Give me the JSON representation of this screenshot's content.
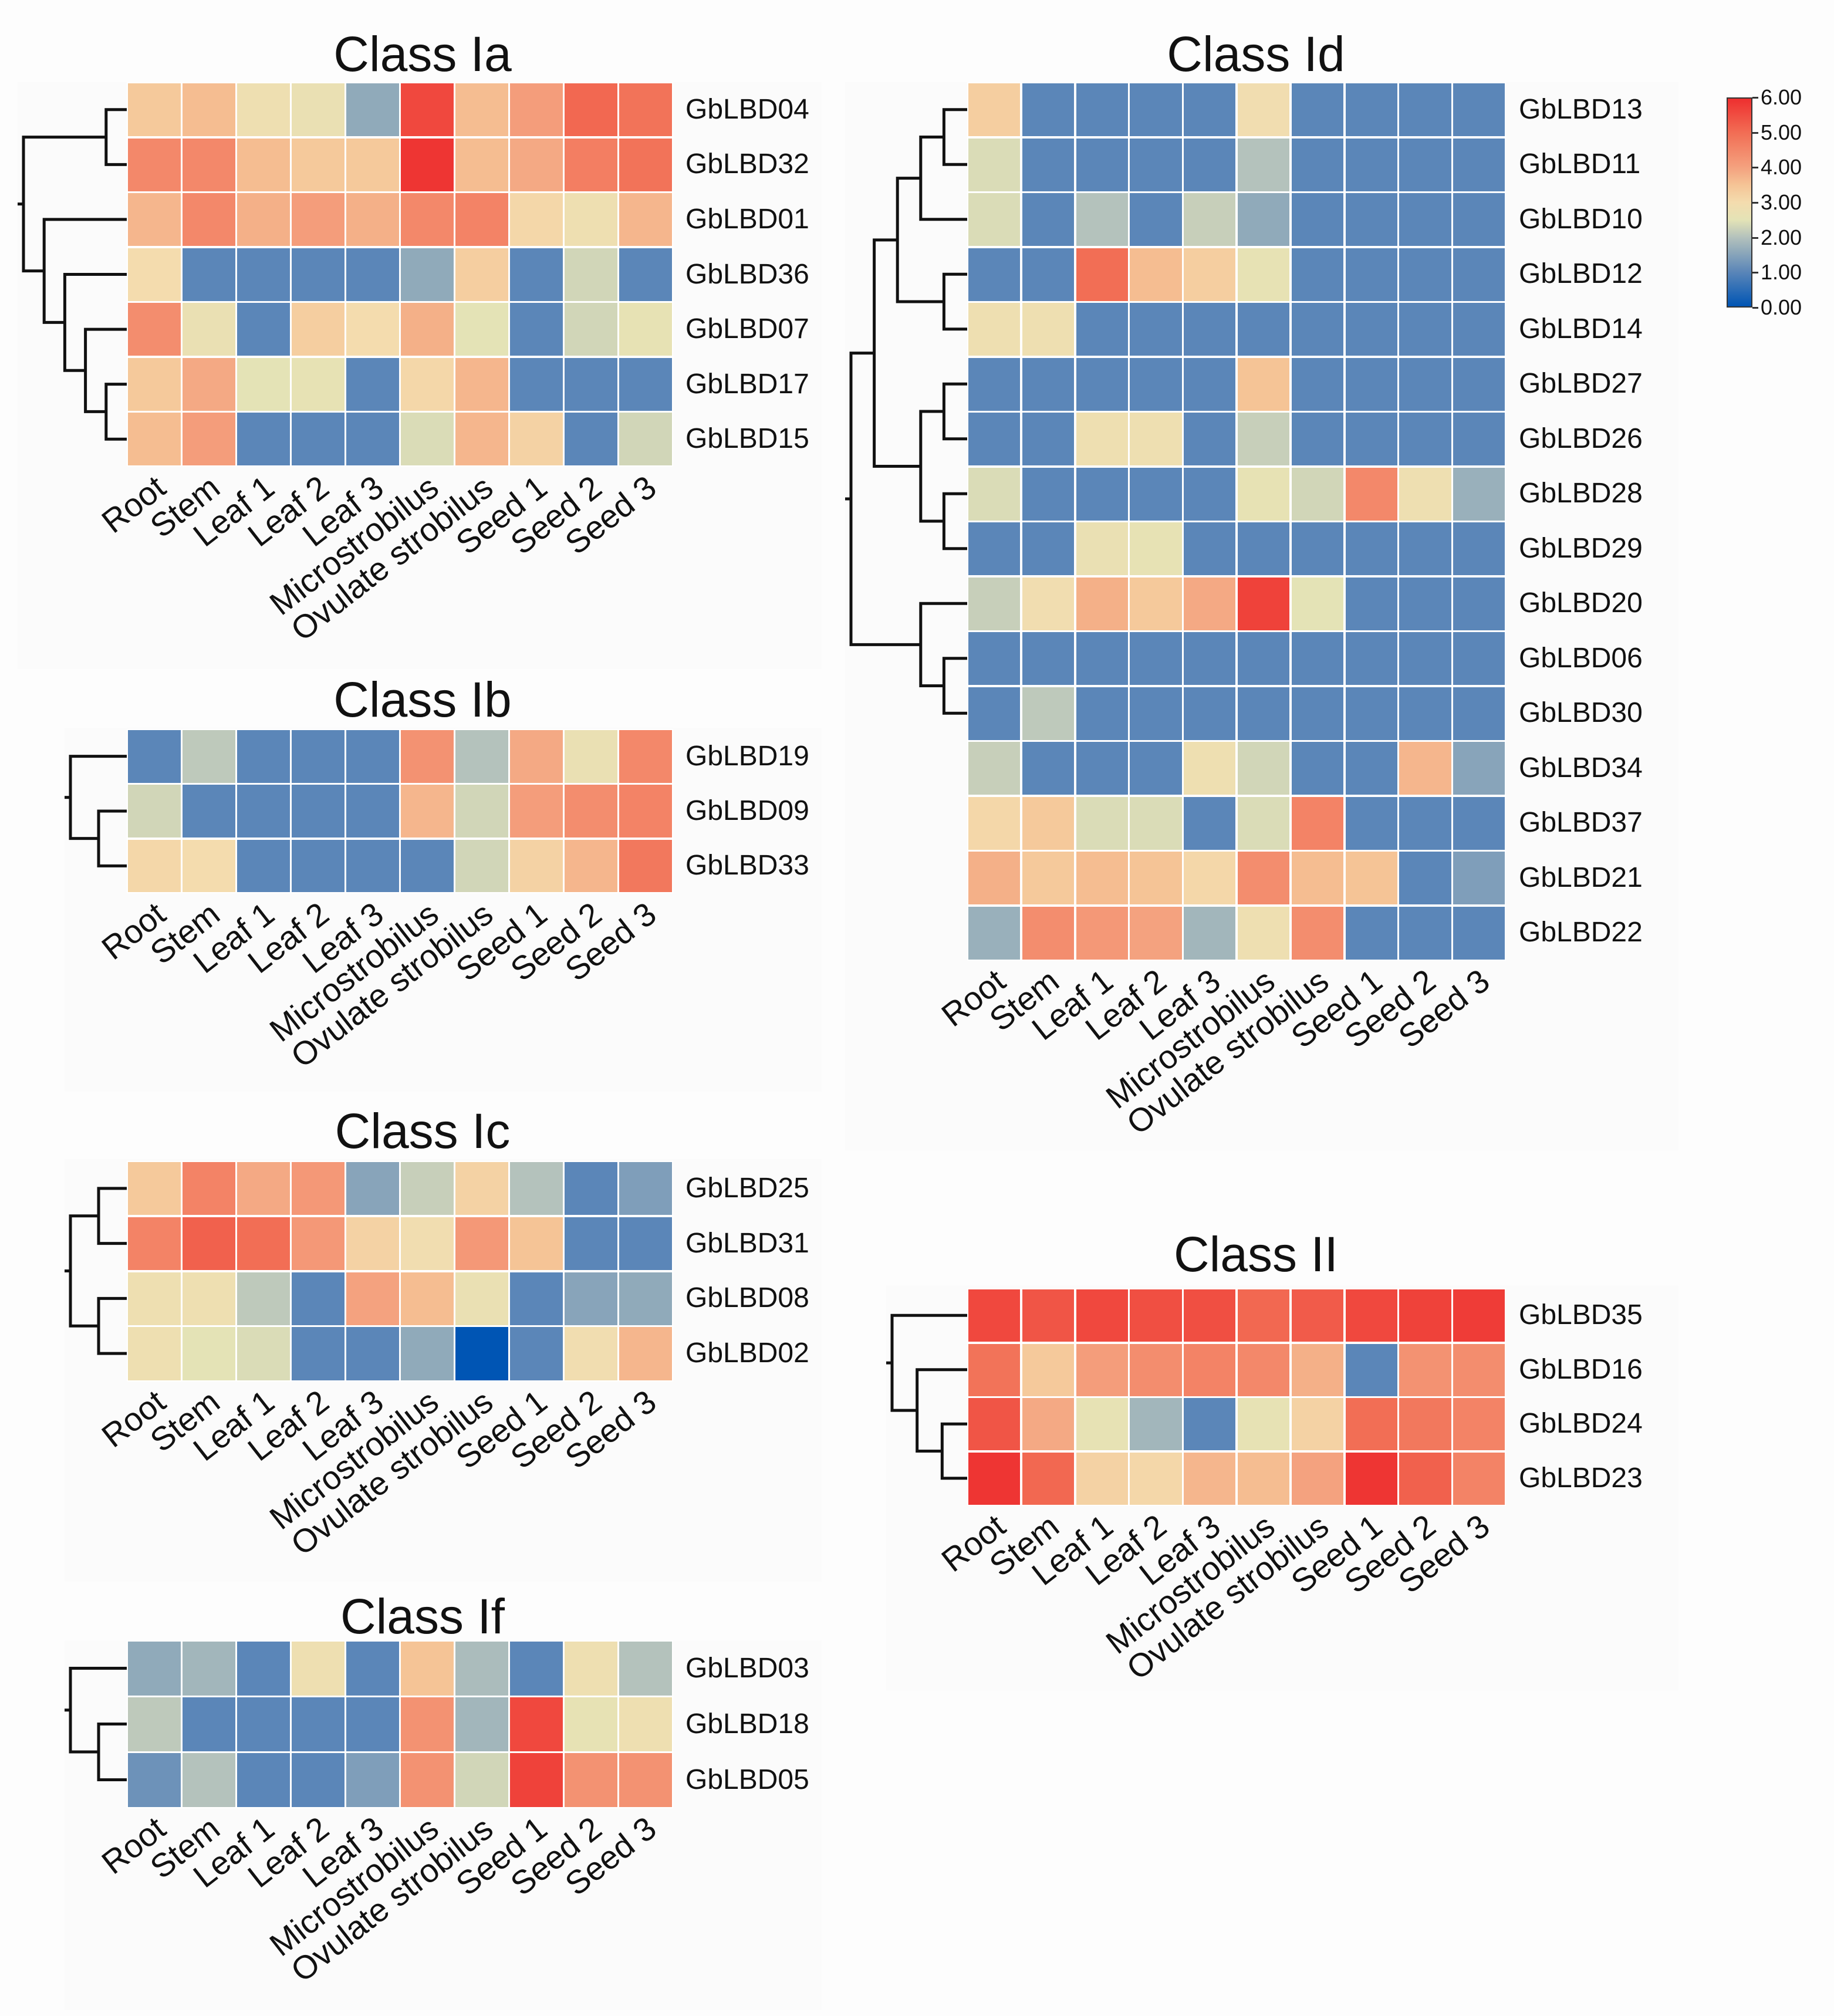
{
  "colorbar": {
    "min": 0,
    "max": 6,
    "ticks": [
      "6.00",
      "5.00",
      "4.00",
      "3.00",
      "2.00",
      "1.00",
      "0.00"
    ],
    "stops": [
      {
        "v": 0.0,
        "c": "#0055b4"
      },
      {
        "v": 1.0,
        "c": "#5b86b8"
      },
      {
        "v": 2.0,
        "c": "#b4c2bc"
      },
      {
        "v": 2.5,
        "c": "#e4e3b6"
      },
      {
        "v": 3.0,
        "c": "#f4dcae"
      },
      {
        "v": 3.5,
        "c": "#f5c496"
      },
      {
        "v": 4.0,
        "c": "#f4a27f"
      },
      {
        "v": 5.0,
        "c": "#f26e55"
      },
      {
        "v": 6.0,
        "c": "#ee2f2f"
      }
    ]
  },
  "columns": [
    "Root",
    "Stem",
    "Leaf 1",
    "Leaf 2",
    "Leaf 3",
    "Microstrobilus",
    "Ovulate strobilus",
    "Seed 1",
    "Seed 2",
    "Seed 3"
  ],
  "chart_data": [
    {
      "type": "heatmap",
      "id": "ia",
      "title": "Class Ia",
      "rows": [
        "GbLBD04",
        "GbLBD32",
        "GbLBD01",
        "GbLBD36",
        "GbLBD07",
        "GbLBD17",
        "GbLBD15"
      ],
      "values": [
        [
          3.4,
          3.6,
          2.8,
          2.7,
          1.6,
          5.6,
          3.6,
          4.1,
          5.1,
          4.9
        ],
        [
          4.5,
          4.5,
          3.6,
          3.4,
          3.4,
          5.9,
          3.6,
          3.9,
          4.7,
          4.9
        ],
        [
          3.7,
          4.5,
          3.8,
          4.1,
          3.8,
          4.5,
          4.6,
          3.1,
          2.8,
          3.7
        ],
        [
          3.0,
          1.0,
          1.0,
          1.0,
          1.0,
          1.6,
          3.3,
          1.0,
          2.3,
          1.0
        ],
        [
          4.4,
          2.7,
          1.0,
          3.3,
          3.0,
          3.8,
          2.5,
          1.0,
          2.3,
          2.6
        ],
        [
          3.4,
          3.9,
          2.5,
          2.6,
          1.0,
          3.1,
          3.7,
          1.0,
          1.0,
          1.0
        ],
        [
          3.6,
          4.1,
          1.0,
          1.0,
          1.0,
          2.4,
          3.7,
          3.2,
          1.0,
          2.3
        ]
      ],
      "tree": [
        [
          [
            0,
            1
          ],
          [
            2,
            [
              3,
              [
                4,
                [
                  5,
                  6
                ]
              ]
            ]
          ]
        ]
      ]
    },
    {
      "type": "heatmap",
      "id": "ib",
      "title": "Class Ib",
      "rows": [
        "GbLBD19",
        "GbLBD09",
        "GbLBD33"
      ],
      "values": [
        [
          1.0,
          2.1,
          1.0,
          1.0,
          1.0,
          4.3,
          2.0,
          3.9,
          2.7,
          4.5
        ],
        [
          2.3,
          1.0,
          1.0,
          1.0,
          1.0,
          3.7,
          2.3,
          4.1,
          4.4,
          4.6
        ],
        [
          3.1,
          3.0,
          1.0,
          1.0,
          1.0,
          1.0,
          2.3,
          3.2,
          3.7,
          4.8
        ]
      ],
      "tree": [
        [
          0,
          [
            1,
            2
          ]
        ]
      ]
    },
    {
      "type": "heatmap",
      "id": "ic",
      "title": "Class Ic",
      "rows": [
        "GbLBD25",
        "GbLBD31",
        "GbLBD08",
        "GbLBD02"
      ],
      "values": [
        [
          3.4,
          4.6,
          3.9,
          4.2,
          1.5,
          2.2,
          3.2,
          2.0,
          1.0,
          1.4
        ],
        [
          4.6,
          5.2,
          5.0,
          4.2,
          3.2,
          2.9,
          4.2,
          3.5,
          1.0,
          1.0
        ],
        [
          2.8,
          2.8,
          2.1,
          1.0,
          4.0,
          3.6,
          2.7,
          1.0,
          1.5,
          1.6
        ],
        [
          2.8,
          2.5,
          2.4,
          1.0,
          1.0,
          1.6,
          0.0,
          1.0,
          2.9,
          3.7
        ]
      ],
      "tree": [
        [
          [
            0,
            1
          ],
          [
            2,
            3
          ]
        ]
      ]
    },
    {
      "type": "heatmap",
      "id": "if",
      "title": "Class If",
      "rows": [
        "GbLBD03",
        "GbLBD18",
        "GbLBD05"
      ],
      "values": [
        [
          1.6,
          1.8,
          1.0,
          2.8,
          1.0,
          3.5,
          1.9,
          1.0,
          2.8,
          2.0
        ],
        [
          2.1,
          1.0,
          1.0,
          1.0,
          1.0,
          4.3,
          1.8,
          5.6,
          2.6,
          2.8
        ],
        [
          1.2,
          2.0,
          1.0,
          1.0,
          1.4,
          4.3,
          2.3,
          5.7,
          4.3,
          4.3
        ]
      ],
      "tree": [
        [
          0,
          [
            1,
            2
          ]
        ]
      ]
    },
    {
      "type": "heatmap",
      "id": "id",
      "title": "Class Id",
      "rows": [
        "GbLBD13",
        "GbLBD11",
        "GbLBD10",
        "GbLBD12",
        "GbLBD14",
        "GbLBD27",
        "GbLBD26",
        "GbLBD28",
        "GbLBD29",
        "GbLBD20",
        "GbLBD06",
        "GbLBD30",
        "GbLBD34",
        "GbLBD37",
        "GbLBD21",
        "GbLBD22"
      ],
      "values": [
        [
          3.3,
          1.0,
          1.0,
          1.0,
          1.0,
          2.9,
          1.0,
          1.0,
          1.0,
          1.0
        ],
        [
          2.4,
          1.0,
          1.0,
          1.0,
          1.0,
          2.0,
          1.0,
          1.0,
          1.0,
          1.0
        ],
        [
          2.4,
          1.0,
          2.0,
          1.0,
          2.2,
          1.6,
          1.0,
          1.0,
          1.0,
          1.0
        ],
        [
          1.0,
          1.0,
          5.0,
          3.6,
          3.3,
          2.6,
          1.0,
          1.0,
          1.0,
          1.0
        ],
        [
          2.8,
          2.8,
          1.0,
          1.0,
          1.0,
          1.0,
          1.0,
          1.0,
          1.0,
          1.0
        ],
        [
          1.0,
          1.0,
          1.0,
          1.0,
          1.0,
          3.5,
          1.0,
          1.0,
          1.0,
          1.0
        ],
        [
          1.0,
          1.0,
          2.8,
          2.8,
          1.0,
          2.2,
          1.0,
          1.0,
          1.0,
          1.0
        ],
        [
          2.4,
          1.0,
          1.0,
          1.0,
          1.0,
          2.6,
          2.3,
          4.5,
          2.8,
          1.7
        ],
        [
          1.0,
          1.0,
          2.7,
          2.6,
          1.0,
          1.0,
          1.0,
          1.0,
          1.0,
          1.0
        ],
        [
          2.2,
          2.9,
          3.8,
          3.4,
          3.9,
          5.7,
          2.5,
          1.0,
          1.0,
          1.0
        ],
        [
          1.0,
          1.0,
          1.0,
          1.0,
          1.0,
          1.0,
          1.0,
          1.0,
          1.0,
          1.0
        ],
        [
          1.0,
          2.1,
          1.0,
          1.0,
          1.0,
          1.0,
          1.0,
          1.0,
          1.0,
          1.0
        ],
        [
          2.2,
          1.0,
          1.0,
          1.0,
          2.8,
          2.3,
          1.0,
          1.0,
          3.7,
          1.5
        ],
        [
          3.1,
          3.4,
          2.4,
          2.4,
          1.0,
          2.4,
          4.6,
          1.0,
          1.0,
          1.0
        ],
        [
          3.8,
          3.4,
          3.6,
          3.5,
          3.1,
          4.4,
          3.6,
          3.5,
          1.0,
          1.4
        ],
        [
          1.7,
          4.4,
          4.2,
          4.0,
          1.8,
          2.8,
          4.4,
          1.0,
          1.0,
          1.0
        ]
      ],
      "tree": [
        [
          [
            [
              [
                [
                  0,
                  1
                ],
                2
              ],
              [
                3,
                4
              ]
            ],
            [
              [
                5,
                6
              ],
              [
                7,
                8
              ]
            ]
          ],
          [
            9,
            [
              10,
              11
            ]
          ]
        ],
        [
          [
            12,
            13
          ],
          [
            14,
            15
          ]
        ]
      ]
    },
    {
      "type": "heatmap",
      "id": "ii",
      "title": "Class II",
      "rows": [
        "GbLBD35",
        "GbLBD16",
        "GbLBD24",
        "GbLBD23"
      ],
      "values": [
        [
          5.6,
          5.4,
          5.6,
          5.5,
          5.5,
          5.1,
          5.3,
          5.6,
          5.7,
          5.8
        ],
        [
          4.9,
          3.4,
          4.1,
          4.4,
          4.6,
          4.5,
          3.8,
          1.0,
          4.3,
          4.4
        ],
        [
          5.4,
          3.9,
          2.6,
          1.8,
          1.0,
          2.6,
          3.2,
          5.0,
          4.8,
          4.6
        ],
        [
          5.9,
          5.1,
          3.2,
          3.1,
          3.7,
          3.6,
          4.0,
          5.9,
          5.2,
          4.6
        ]
      ],
      "tree": [
        [
          0,
          [
            1,
            [
              2,
              3
            ]
          ]
        ]
      ]
    }
  ]
}
